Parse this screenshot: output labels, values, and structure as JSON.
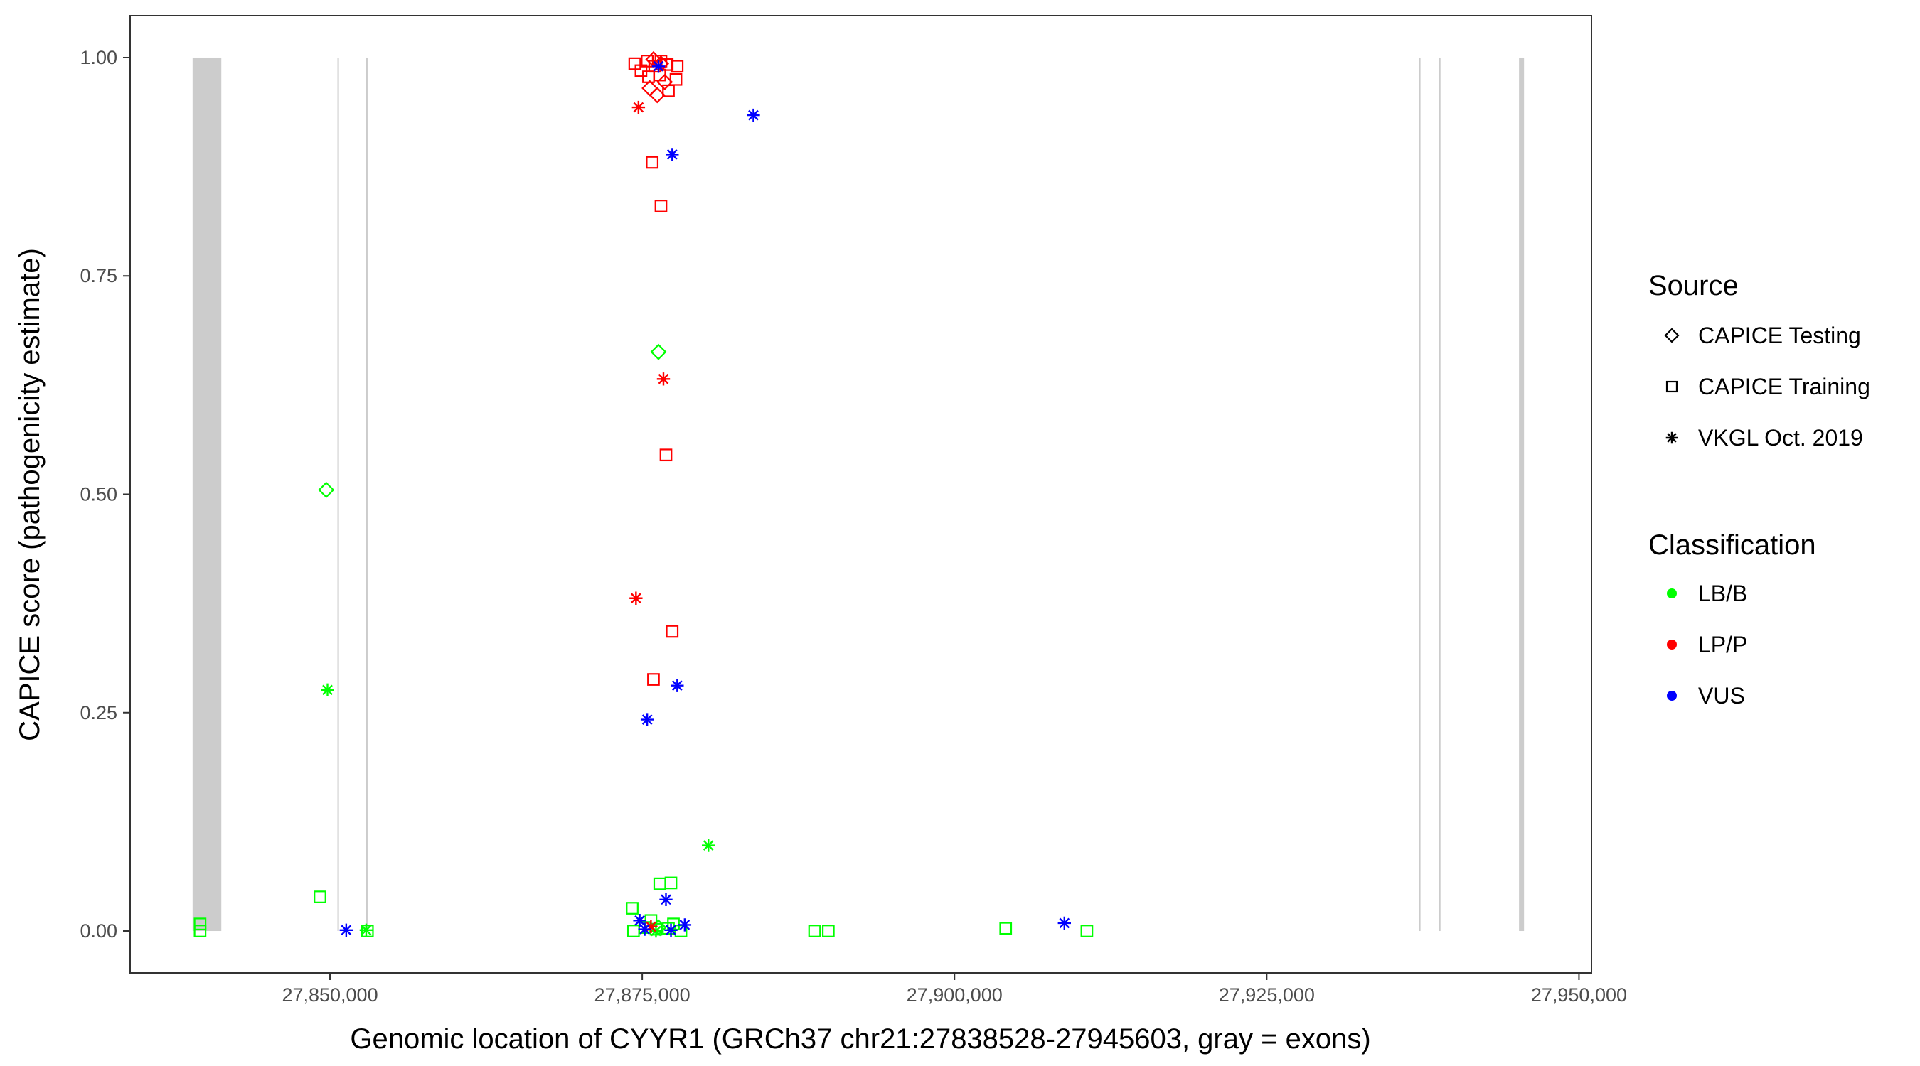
{
  "chart_data": {
    "type": "scatter",
    "xlabel": "Genomic location of CYYR1 (GRCh37 chr21:27838528-27945603, gray = exons)",
    "ylabel": "CAPICE score (pathogenicity estimate)",
    "xlim": [
      27834000,
      27951000
    ],
    "ylim": [
      -0.048,
      1.048
    ],
    "x_ticks": [
      27850000,
      27875000,
      27900000,
      27925000,
      27950000
    ],
    "x_tick_labels": [
      "27,850,000",
      "27,875,000",
      "27,900,000",
      "27,925,000",
      "27,950,000"
    ],
    "y_ticks": [
      0,
      0.25,
      0.5,
      0.75,
      1.0
    ],
    "y_tick_labels": [
      "0.00",
      "0.25",
      "0.50",
      "0.75",
      "1.00"
    ],
    "grid": false,
    "exons": [
      {
        "start": 27839000,
        "end": 27841300
      },
      {
        "start": 27850600,
        "end": 27850700
      },
      {
        "start": 27852900,
        "end": 27853000
      },
      {
        "start": 27937200,
        "end": 27937300
      },
      {
        "start": 27938800,
        "end": 27938900
      },
      {
        "start": 27945200,
        "end": 27945600
      }
    ],
    "legend": {
      "position": "right",
      "source_title": "Source",
      "source_entries": [
        {
          "key": "testing",
          "label": "CAPICE Testing",
          "shape": "diamond"
        },
        {
          "key": "training",
          "label": "CAPICE Training",
          "shape": "square"
        },
        {
          "key": "vkgl",
          "label": "VKGL Oct. 2019",
          "shape": "asterisk"
        }
      ],
      "classification_title": "Classification",
      "classification_entries": [
        {
          "key": "lbb",
          "label": "LB/B",
          "color": "#00ff00"
        },
        {
          "key": "lpp",
          "label": "LP/P",
          "color": "#ff0000"
        },
        {
          "key": "vus",
          "label": "VUS",
          "color": "#0000ff"
        }
      ]
    },
    "series": [
      {
        "name": "CAPICE Testing",
        "shape": "diamond",
        "points": [
          {
            "x": 27849700,
            "y": 0.505,
            "cls": "lbb"
          },
          {
            "x": 27876300,
            "y": 0.663,
            "cls": "lbb"
          },
          {
            "x": 27875600,
            "y": 0.965,
            "cls": "lpp"
          },
          {
            "x": 27876200,
            "y": 0.957,
            "cls": "lpp"
          },
          {
            "x": 27876800,
            "y": 0.972,
            "cls": "lpp"
          },
          {
            "x": 27875900,
            "y": 0.998,
            "cls": "lpp"
          },
          {
            "x": 27876500,
            "y": 0.993,
            "cls": "lpp"
          },
          {
            "x": 27876300,
            "y": 0.004,
            "cls": "lbb"
          }
        ]
      },
      {
        "name": "CAPICE Training",
        "shape": "square",
        "points": [
          {
            "x": 27839600,
            "y": 0.008,
            "cls": "lbb"
          },
          {
            "x": 27839600,
            "y": 0.0,
            "cls": "lbb"
          },
          {
            "x": 27849200,
            "y": 0.039,
            "cls": "lbb"
          },
          {
            "x": 27853000,
            "y": 0.0,
            "cls": "lbb"
          },
          {
            "x": 27874200,
            "y": 0.026,
            "cls": "lbb"
          },
          {
            "x": 27876400,
            "y": 0.054,
            "cls": "lbb"
          },
          {
            "x": 27877300,
            "y": 0.055,
            "cls": "lbb"
          },
          {
            "x": 27874300,
            "y": 0.0,
            "cls": "lbb"
          },
          {
            "x": 27875200,
            "y": 0.004,
            "cls": "lbb"
          },
          {
            "x": 27876100,
            "y": 0.002,
            "cls": "lbb"
          },
          {
            "x": 27877100,
            "y": 0.003,
            "cls": "lbb"
          },
          {
            "x": 27878100,
            "y": 0.0,
            "cls": "lbb"
          },
          {
            "x": 27875700,
            "y": 0.012,
            "cls": "lbb"
          },
          {
            "x": 27877500,
            "y": 0.008,
            "cls": "lbb"
          },
          {
            "x": 27888800,
            "y": 0.0,
            "cls": "lbb"
          },
          {
            "x": 27889900,
            "y": 0.0,
            "cls": "lbb"
          },
          {
            "x": 27904100,
            "y": 0.003,
            "cls": "lbb"
          },
          {
            "x": 27910600,
            "y": 0.0,
            "cls": "lbb"
          },
          {
            "x": 27874400,
            "y": 0.993,
            "cls": "lpp"
          },
          {
            "x": 27874900,
            "y": 0.985,
            "cls": "lpp"
          },
          {
            "x": 27875400,
            "y": 0.996,
            "cls": "lpp"
          },
          {
            "x": 27876000,
            "y": 0.99,
            "cls": "lpp"
          },
          {
            "x": 27876500,
            "y": 0.996,
            "cls": "lpp"
          },
          {
            "x": 27877000,
            "y": 0.992,
            "cls": "lpp"
          },
          {
            "x": 27877800,
            "y": 0.99,
            "cls": "lpp"
          },
          {
            "x": 27875500,
            "y": 0.978,
            "cls": "lpp"
          },
          {
            "x": 27876400,
            "y": 0.98,
            "cls": "lpp"
          },
          {
            "x": 27877700,
            "y": 0.975,
            "cls": "lpp"
          },
          {
            "x": 27877100,
            "y": 0.962,
            "cls": "lpp"
          },
          {
            "x": 27875800,
            "y": 0.88,
            "cls": "lpp"
          },
          {
            "x": 27876500,
            "y": 0.83,
            "cls": "lpp"
          },
          {
            "x": 27876900,
            "y": 0.545,
            "cls": "lpp"
          },
          {
            "x": 27877400,
            "y": 0.343,
            "cls": "lpp"
          },
          {
            "x": 27875900,
            "y": 0.288,
            "cls": "lpp"
          }
        ]
      },
      {
        "name": "VKGL Oct. 2019",
        "shape": "asterisk",
        "points": [
          {
            "x": 27849800,
            "y": 0.276,
            "cls": "lbb"
          },
          {
            "x": 27880300,
            "y": 0.098,
            "cls": "lbb"
          },
          {
            "x": 27852900,
            "y": 0.001,
            "cls": "lbb"
          },
          {
            "x": 27876100,
            "y": 0.0,
            "cls": "lbb"
          },
          {
            "x": 27874700,
            "y": 0.943,
            "cls": "lpp"
          },
          {
            "x": 27876700,
            "y": 0.632,
            "cls": "lpp"
          },
          {
            "x": 27874500,
            "y": 0.381,
            "cls": "lpp"
          },
          {
            "x": 27875700,
            "y": 0.005,
            "cls": "lpp"
          },
          {
            "x": 27876300,
            "y": 0.99,
            "cls": "vus"
          },
          {
            "x": 27883900,
            "y": 0.934,
            "cls": "vus"
          },
          {
            "x": 27877400,
            "y": 0.889,
            "cls": "vus"
          },
          {
            "x": 27877800,
            "y": 0.281,
            "cls": "vus"
          },
          {
            "x": 27875400,
            "y": 0.242,
            "cls": "vus"
          },
          {
            "x": 27876900,
            "y": 0.036,
            "cls": "vus"
          },
          {
            "x": 27874800,
            "y": 0.012,
            "cls": "vus"
          },
          {
            "x": 27878400,
            "y": 0.007,
            "cls": "vus"
          },
          {
            "x": 27875200,
            "y": 0.002,
            "cls": "vus"
          },
          {
            "x": 27877300,
            "y": 0.001,
            "cls": "vus"
          },
          {
            "x": 27851300,
            "y": 0.001,
            "cls": "vus"
          },
          {
            "x": 27908800,
            "y": 0.009,
            "cls": "vus"
          }
        ]
      }
    ]
  }
}
